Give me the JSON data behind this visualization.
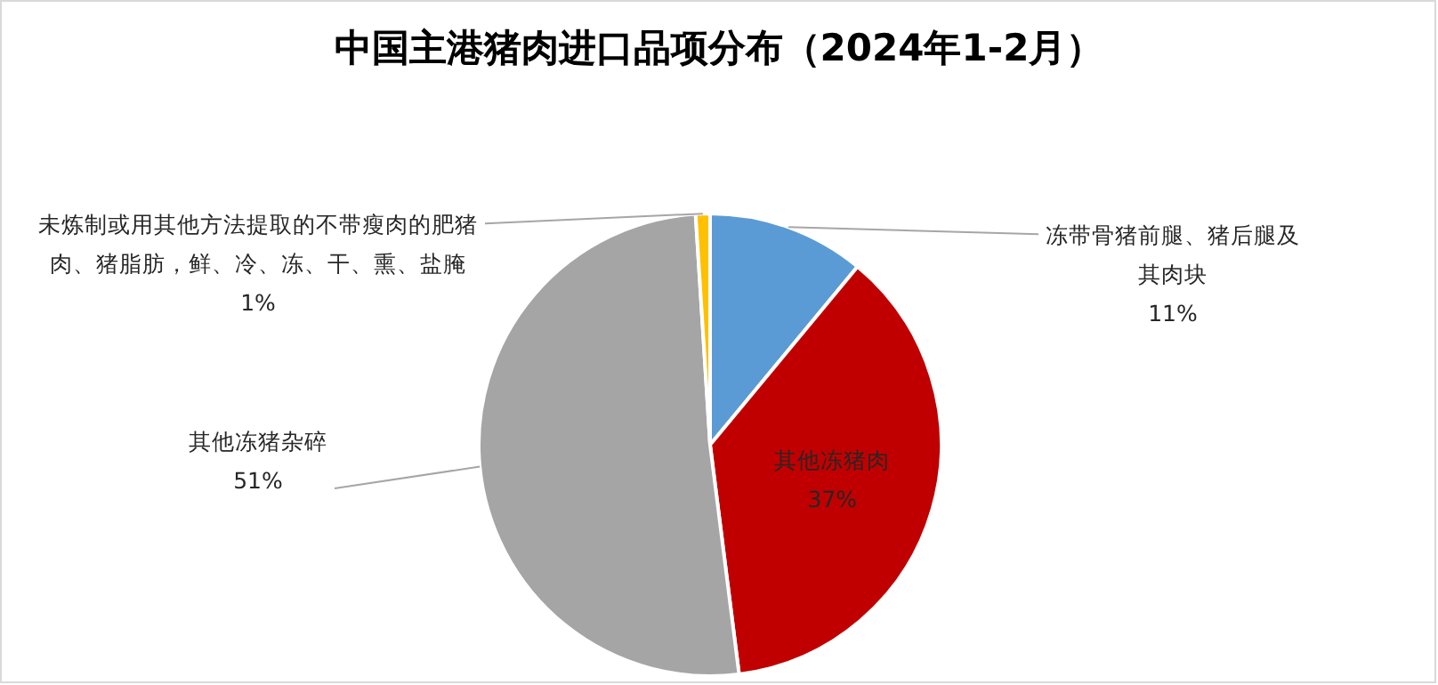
{
  "chart_data": {
    "type": "pie",
    "title": "中国主港猪肉进口品项分布（2024年1-2月）",
    "categories": [
      "冻带骨猪前腿、猪后腿及其肉块",
      "其他冻猪肉",
      "其他冻猪杂碎",
      "未炼制或用其他方法提取的不带瘦肉的肥猪肉、猪脂肪，鲜、冷、冻、干、熏、盐腌"
    ],
    "values": [
      11,
      37,
      51,
      1
    ],
    "colors": [
      "#5b9bd5",
      "#c00000",
      "#a5a5a5",
      "#ffc000"
    ],
    "value_labels": [
      "11%",
      "37%",
      "51%",
      "1%"
    ]
  }
}
